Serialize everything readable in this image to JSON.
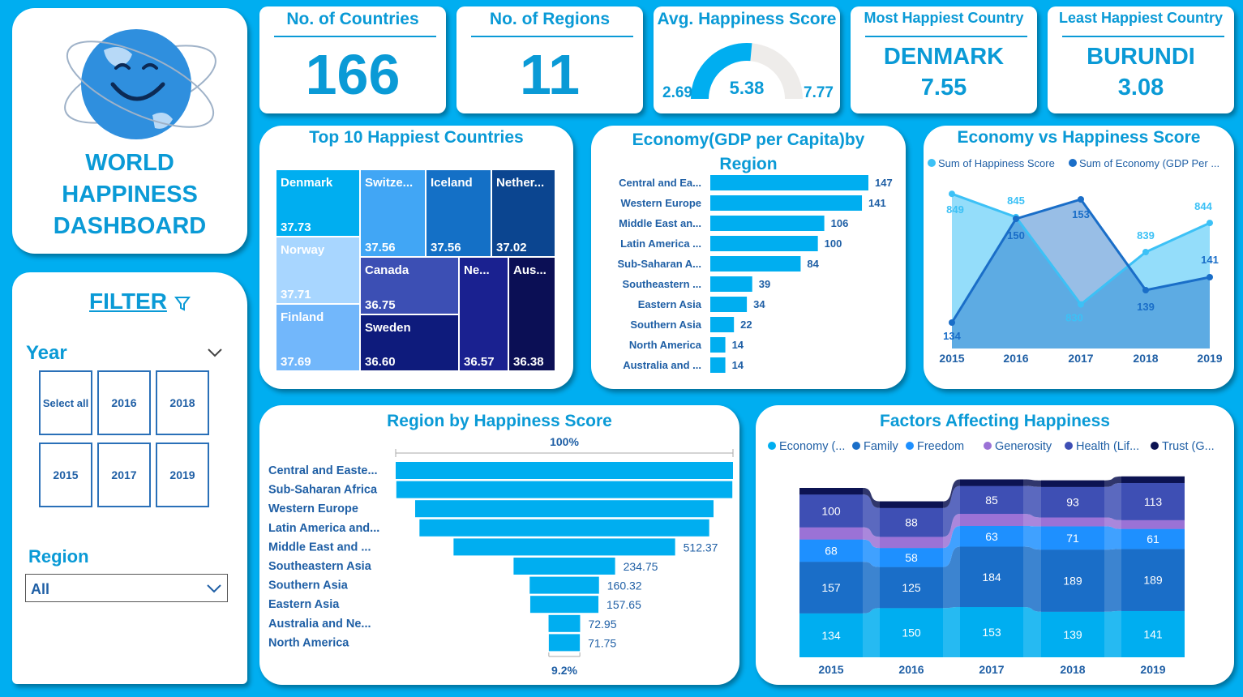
{
  "logo_card": {
    "title_lines": [
      "WORLD",
      "HAPPINESS",
      "DASHBOARD"
    ]
  },
  "filter": {
    "title": "FILTER",
    "year_label": "Year",
    "years": [
      "Select all",
      "2016",
      "2018",
      "2015",
      "2017",
      "2019"
    ],
    "region_label": "Region",
    "region_value": "All"
  },
  "kpis": {
    "countries": {
      "title": "No. of Countries",
      "value": "166"
    },
    "regions": {
      "title": "No. of Regions",
      "value": "11"
    },
    "avg": {
      "title": "Avg. Happiness Score",
      "min": "2.69",
      "value": "5.38",
      "max": "7.77"
    },
    "most": {
      "title": "Most Happiest Country",
      "country": "DENMARK",
      "score": "7.55"
    },
    "least": {
      "title": "Least Happiest Country",
      "country": "BURUNDI",
      "score": "3.08"
    }
  },
  "colors": {
    "accent": "#0a9ad6",
    "bar": "#00aef0",
    "background": "#00aef0"
  },
  "chart_data": [
    {
      "id": "treemap",
      "type": "treemap",
      "title": "Top 10 Happiest Countries",
      "items": [
        {
          "label": "Denmark",
          "value": "37.73",
          "color": "#00aef0"
        },
        {
          "label": "Switze...",
          "value": "37.56",
          "color": "#41a6f5"
        },
        {
          "label": "Iceland",
          "value": "37.56",
          "color": "#1470c6"
        },
        {
          "label": "Nether...",
          "value": "37.02",
          "color": "#0b4590"
        },
        {
          "label": "Norway",
          "value": "37.71",
          "color": "#a8d6ff"
        },
        {
          "label": "Canada",
          "value": "36.75",
          "color": "#3c4fb4"
        },
        {
          "label": "Ne...",
          "value": "36.57",
          "color": "#1a2190"
        },
        {
          "label": "Aus...",
          "value": "36.38",
          "color": "#0b0f55"
        },
        {
          "label": "Finland",
          "value": "37.69",
          "color": "#72b7fb"
        },
        {
          "label": "Sweden",
          "value": "36.60",
          "color": "#0e1b7c"
        }
      ]
    },
    {
      "id": "gdp",
      "type": "bar",
      "title": "Economy(GDP per Capita)by Region",
      "categories": [
        "Central and Ea...",
        "Western Europe",
        "Middle East an...",
        "Latin America ...",
        "Sub-Saharan A...",
        "Southeastern ...",
        "Eastern Asia",
        "Southern Asia",
        "North America",
        "Australia and ..."
      ],
      "values": [
        147,
        141,
        106,
        100,
        84,
        39,
        34,
        22,
        14,
        14
      ]
    },
    {
      "id": "evh",
      "type": "area",
      "title": "Economy vs Happiness Score",
      "x": [
        "2015",
        "2016",
        "2017",
        "2018",
        "2019"
      ],
      "series": [
        {
          "name": "Sum of Happiness Score",
          "values": [
            849,
            845,
            830,
            839,
            844
          ],
          "color": "#3cc1f6"
        },
        {
          "name": "Sum of Economy (GDP Per ...",
          "values": [
            134,
            150,
            153,
            139,
            141
          ],
          "color": "#1a6ec8"
        }
      ]
    },
    {
      "id": "funnel",
      "type": "bar",
      "title": "Region by Happiness Score",
      "top_label": "100%",
      "bottom_label": "9.2%",
      "categories": [
        "Central and Easte...",
        "Sub-Saharan Africa",
        "Western Europe",
        "Latin America and...",
        "Middle East and ...",
        "Southeastern Asia",
        "Southern Asia",
        "Eastern Asia",
        "Australia and Ne...",
        "North America"
      ],
      "values": [
        780,
        777,
        690,
        670,
        512.37,
        234.75,
        160.32,
        157.65,
        72.95,
        71.75
      ],
      "data_labels": [
        "",
        "",
        "",
        "",
        "512.37",
        "234.75",
        "160.32",
        "157.65",
        "72.95",
        "71.75"
      ]
    },
    {
      "id": "factors",
      "type": "area",
      "stacked": true,
      "title": "Factors Affecting Happiness",
      "x": [
        "2015",
        "2016",
        "2017",
        "2018",
        "2019"
      ],
      "legend": [
        {
          "name": "Economy (...",
          "color": "#00aef0"
        },
        {
          "name": "Family",
          "color": "#1a6ec8"
        },
        {
          "name": "Freedom",
          "color": "#1e90ff"
        },
        {
          "name": "Generosity",
          "color": "#9b72d6"
        },
        {
          "name": "Health (Lif...",
          "color": "#3e4fb4"
        },
        {
          "name": "Trust (G...",
          "color": "#0c1352"
        }
      ],
      "series": [
        {
          "name": "Economy (...",
          "values": [
            134,
            150,
            153,
            139,
            141
          ]
        },
        {
          "name": "Family",
          "values": [
            157,
            125,
            184,
            189,
            189
          ]
        },
        {
          "name": "Freedom",
          "values": [
            68,
            58,
            63,
            71,
            61
          ]
        },
        {
          "name": "Generosity",
          "values": [
            37,
            34,
            37,
            27,
            27
          ]
        },
        {
          "name": "Health (Lif...",
          "values": [
            100,
            88,
            85,
            93,
            113
          ]
        },
        {
          "name": "Trust (G...",
          "values": [
            20,
            20,
            20,
            20,
            20
          ]
        }
      ]
    }
  ]
}
